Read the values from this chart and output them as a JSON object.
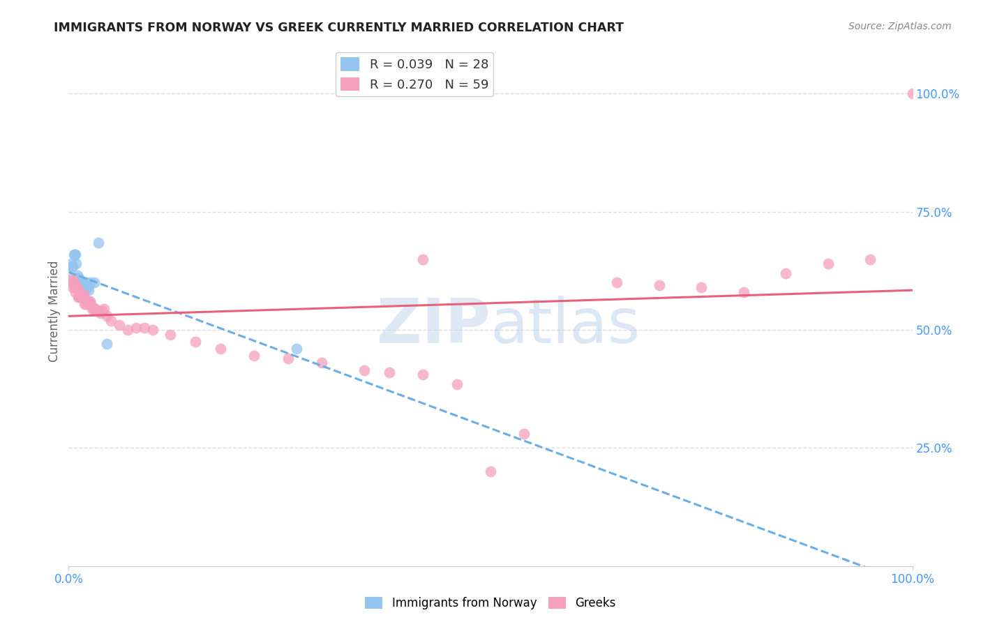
{
  "title": "IMMIGRANTS FROM NORWAY VS GREEK CURRENTLY MARRIED CORRELATION CHART",
  "source": "Source: ZipAtlas.com",
  "ylabel": "Currently Married",
  "watermark": "ZIPatlas",
  "legend_entries": [
    {
      "label": "R = 0.039   N = 28",
      "color": "#94c4f0"
    },
    {
      "label": "R = 0.270   N = 59",
      "color": "#f5a0bc"
    }
  ],
  "legend_labels_bottom": [
    "Immigrants from Norway",
    "Greeks"
  ],
  "norway_x": [
    0.002,
    0.003,
    0.004,
    0.005,
    0.006,
    0.007,
    0.008,
    0.009,
    0.01,
    0.011,
    0.012,
    0.013,
    0.014,
    0.015,
    0.016,
    0.017,
    0.018,
    0.019,
    0.02,
    0.021,
    0.022,
    0.023,
    0.024,
    0.025,
    0.03,
    0.035,
    0.045,
    0.27
  ],
  "norway_y": [
    0.605,
    0.64,
    0.635,
    0.635,
    0.66,
    0.66,
    0.66,
    0.64,
    0.615,
    0.61,
    0.61,
    0.605,
    0.605,
    0.6,
    0.6,
    0.6,
    0.6,
    0.595,
    0.6,
    0.6,
    0.595,
    0.59,
    0.585,
    0.6,
    0.6,
    0.685,
    0.47,
    0.46
  ],
  "greek_x": [
    0.003,
    0.004,
    0.005,
    0.006,
    0.007,
    0.008,
    0.009,
    0.01,
    0.011,
    0.012,
    0.013,
    0.014,
    0.015,
    0.016,
    0.017,
    0.018,
    0.019,
    0.02,
    0.022,
    0.024,
    0.025,
    0.026,
    0.027,
    0.028,
    0.03,
    0.032,
    0.034,
    0.036,
    0.038,
    0.04,
    0.042,
    0.045,
    0.05,
    0.06,
    0.07,
    0.08,
    0.09,
    0.1,
    0.12,
    0.15,
    0.18,
    0.22,
    0.26,
    0.3,
    0.35,
    0.38,
    0.42,
    0.46,
    0.5,
    0.54,
    0.42,
    0.65,
    0.7,
    0.75,
    0.8,
    0.85,
    0.9,
    0.95,
    1.0
  ],
  "greek_y": [
    0.6,
    0.61,
    0.59,
    0.6,
    0.59,
    0.58,
    0.59,
    0.59,
    0.57,
    0.57,
    0.575,
    0.57,
    0.57,
    0.57,
    0.57,
    0.575,
    0.555,
    0.555,
    0.56,
    0.56,
    0.56,
    0.555,
    0.55,
    0.545,
    0.545,
    0.545,
    0.54,
    0.54,
    0.535,
    0.54,
    0.545,
    0.53,
    0.52,
    0.51,
    0.5,
    0.505,
    0.505,
    0.5,
    0.49,
    0.475,
    0.46,
    0.445,
    0.44,
    0.43,
    0.415,
    0.41,
    0.405,
    0.385,
    0.2,
    0.28,
    0.65,
    0.6,
    0.595,
    0.59,
    0.58,
    0.62,
    0.64,
    0.65,
    1.0
  ],
  "norway_color": "#94c4f0",
  "greek_color": "#f5a0bc",
  "norway_line_color": "#6aaee8",
  "greek_line_color": "#e8607a",
  "background_color": "#ffffff",
  "grid_color": "#e0e0e0",
  "title_color": "#222222",
  "source_color": "#888888",
  "axis_tick_color": "#4499ff",
  "right_ytick_labels": [
    "100.0%",
    "75.0%",
    "50.0%",
    "25.0%"
  ],
  "right_ytick_values": [
    1.0,
    0.75,
    0.5,
    0.25
  ],
  "xlim": [
    0.0,
    1.0
  ],
  "ylim": [
    0.0,
    1.08
  ]
}
